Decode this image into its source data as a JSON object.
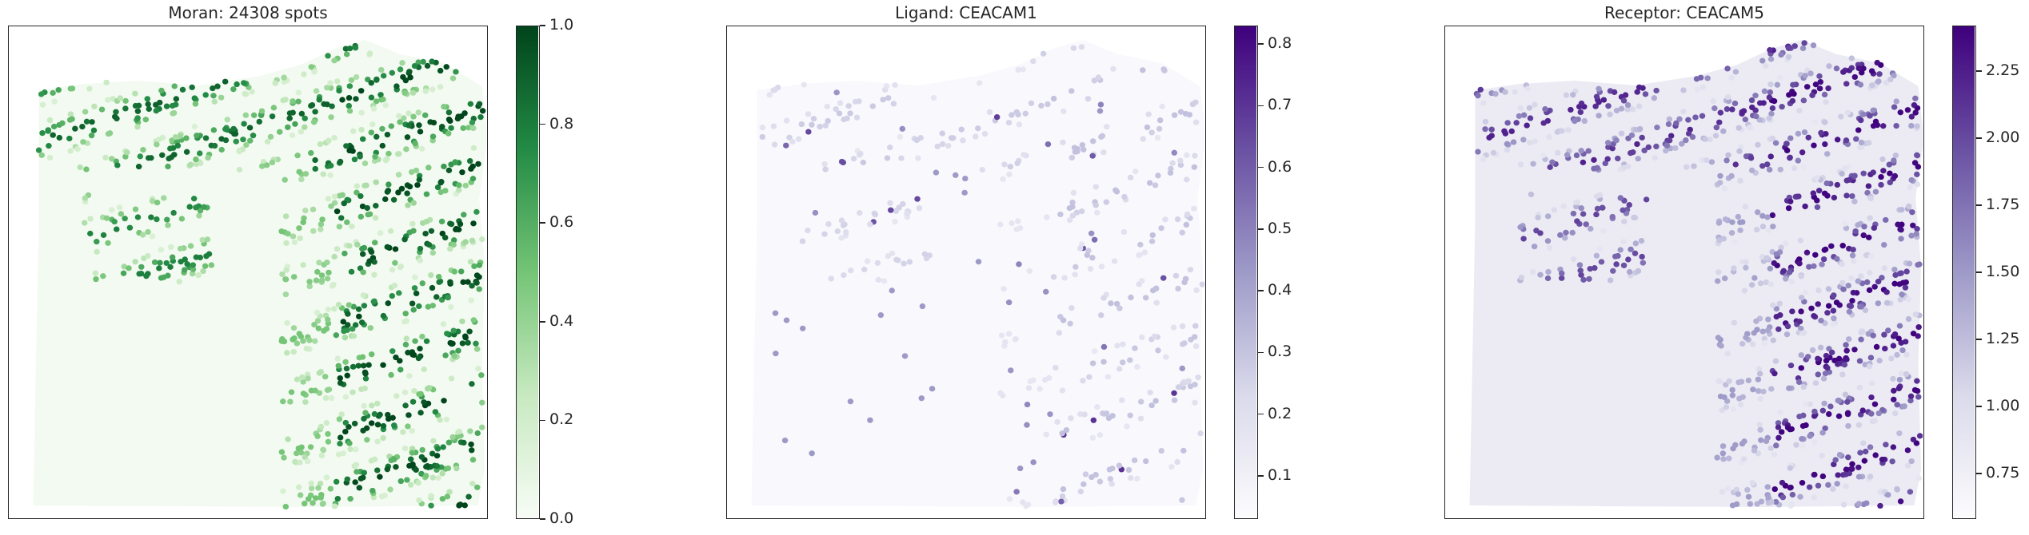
{
  "chart_data": [
    {
      "type": "heatmap",
      "title": "Moran: 24308 spots",
      "colormap": "Greens",
      "colors": [
        "#f7fcf5",
        "#c7e9c0",
        "#74c476",
        "#238b45",
        "#00441b"
      ],
      "colorbar": {
        "range": [
          0.0,
          1.0
        ],
        "ticks": [
          0.0,
          0.2,
          0.4,
          0.6,
          0.8,
          1.0
        ],
        "tick_labels": [
          "0.0",
          "0.2",
          "0.4",
          "0.6",
          "0.8",
          "1.0"
        ]
      },
      "axes_visible": false
    },
    {
      "type": "heatmap",
      "title": "Ligand: CEACAM1",
      "colormap": "Purples",
      "colors": [
        "#fcfbfd",
        "#dadaeb",
        "#9e9ac8",
        "#6a51a3",
        "#3f007d"
      ],
      "colorbar": {
        "range": [
          0.03,
          0.83
        ],
        "ticks": [
          0.1,
          0.2,
          0.3,
          0.4,
          0.5,
          0.6,
          0.7,
          0.8
        ],
        "tick_labels": [
          "0.1",
          "0.2",
          "0.3",
          "0.4",
          "0.5",
          "0.6",
          "0.7",
          "0.8"
        ]
      },
      "axes_visible": false
    },
    {
      "type": "heatmap",
      "title": "Receptor: CEACAM5",
      "colormap": "Purples",
      "colors": [
        "#fcfbfd",
        "#dadaeb",
        "#9e9ac8",
        "#6a51a3",
        "#3f007d"
      ],
      "colorbar": {
        "range": [
          0.58,
          2.42
        ],
        "ticks": [
          0.75,
          1.0,
          1.25,
          1.5,
          1.75,
          2.0,
          2.25
        ],
        "tick_labels": [
          "0.75",
          "1.00",
          "1.25",
          "1.50",
          "1.75",
          "2.00",
          "2.25"
        ]
      },
      "axes_visible": false
    }
  ]
}
